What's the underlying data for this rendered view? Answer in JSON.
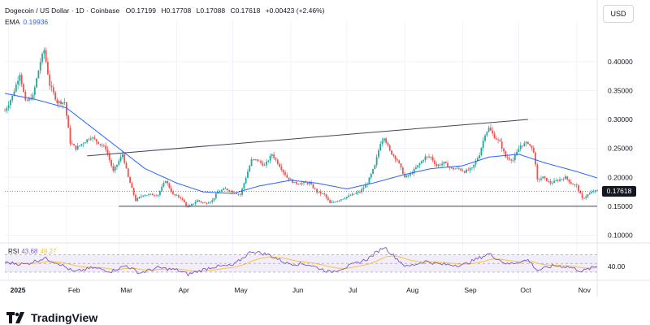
{
  "header": {
    "symbol": "Dogecoin / US Dollar · 1D · Coinbase",
    "open": "O0.17199",
    "high": "H0.17708",
    "low": "L0.17088",
    "close": "C0.17618",
    "change": "+0.00423 (+2.46%)",
    "ema_label": "EMA",
    "ema_value": "0.19936"
  },
  "currency_button": "USD",
  "last_price": "0.17618",
  "rsi": {
    "label": "RSI",
    "value": "43.68",
    "ma_value": "48.27",
    "level_label": "40.00"
  },
  "brand": "TradingView",
  "colors": {
    "up": "#26a69a",
    "down": "#ef5350",
    "ema": "#2962ff",
    "rsi": "#7e57c2",
    "rsi_ma": "#f5c242",
    "band": "#ede7f6"
  },
  "chart_data": {
    "type": "candlestick",
    "y_axis": {
      "ticks": [
        0.1,
        0.15,
        0.2,
        0.25,
        0.3,
        0.35,
        0.4
      ],
      "tick_labels": [
        "0.10000",
        "0.15000",
        "0.20000",
        "0.25000",
        "0.30000",
        "0.35000",
        "0.40000"
      ],
      "ylim": [
        0.088,
        0.47
      ]
    },
    "x_axis": {
      "labels": [
        "2025",
        "Feb",
        "Mar",
        "Apr",
        "May",
        "Jun",
        "Jul",
        "Aug",
        "Sep",
        "Oct",
        "Nov"
      ],
      "dates": [
        "2025-01-01",
        "2025-02-01",
        "2025-03-01",
        "2025-04-01",
        "2025-05-01",
        "2025-06-01",
        "2025-07-01",
        "2025-08-01",
        "2025-09-01",
        "2025-10-01",
        "2025-11-01"
      ],
      "range": [
        "2024-12-30",
        "2025-11-12"
      ]
    },
    "price_anchors": [
      [
        "2024-12-30",
        0.315
      ],
      [
        "2025-01-03",
        0.34
      ],
      [
        "2025-01-07",
        0.38
      ],
      [
        "2025-01-10",
        0.33
      ],
      [
        "2025-01-14",
        0.34
      ],
      [
        "2025-01-18",
        0.4
      ],
      [
        "2025-01-20",
        0.42
      ],
      [
        "2025-01-23",
        0.36
      ],
      [
        "2025-01-27",
        0.33
      ],
      [
        "2025-01-31",
        0.33
      ],
      [
        "2025-02-03",
        0.26
      ],
      [
        "2025-02-06",
        0.25
      ],
      [
        "2025-02-10",
        0.26
      ],
      [
        "2025-02-14",
        0.27
      ],
      [
        "2025-02-18",
        0.26
      ],
      [
        "2025-02-22",
        0.25
      ],
      [
        "2025-02-26",
        0.21
      ],
      [
        "2025-03-03",
        0.24
      ],
      [
        "2025-03-06",
        0.2
      ],
      [
        "2025-03-10",
        0.16
      ],
      [
        "2025-03-14",
        0.17
      ],
      [
        "2025-03-18",
        0.17
      ],
      [
        "2025-03-22",
        0.17
      ],
      [
        "2025-03-26",
        0.195
      ],
      [
        "2025-03-30",
        0.17
      ],
      [
        "2025-04-03",
        0.165
      ],
      [
        "2025-04-07",
        0.148
      ],
      [
        "2025-04-12",
        0.16
      ],
      [
        "2025-04-16",
        0.155
      ],
      [
        "2025-04-20",
        0.16
      ],
      [
        "2025-04-23",
        0.175
      ],
      [
        "2025-04-27",
        0.18
      ],
      [
        "2025-05-01",
        0.175
      ],
      [
        "2025-05-05",
        0.17
      ],
      [
        "2025-05-08",
        0.2
      ],
      [
        "2025-05-11",
        0.23
      ],
      [
        "2025-05-14",
        0.23
      ],
      [
        "2025-05-18",
        0.22
      ],
      [
        "2025-05-22",
        0.24
      ],
      [
        "2025-05-26",
        0.22
      ],
      [
        "2025-05-30",
        0.2
      ],
      [
        "2025-06-03",
        0.19
      ],
      [
        "2025-06-07",
        0.19
      ],
      [
        "2025-06-11",
        0.19
      ],
      [
        "2025-06-15",
        0.175
      ],
      [
        "2025-06-19",
        0.17
      ],
      [
        "2025-06-22",
        0.155
      ],
      [
        "2025-06-26",
        0.16
      ],
      [
        "2025-06-30",
        0.165
      ],
      [
        "2025-07-04",
        0.17
      ],
      [
        "2025-07-08",
        0.175
      ],
      [
        "2025-07-12",
        0.19
      ],
      [
        "2025-07-16",
        0.22
      ],
      [
        "2025-07-19",
        0.26
      ],
      [
        "2025-07-21",
        0.27
      ],
      [
        "2025-07-24",
        0.245
      ],
      [
        "2025-07-28",
        0.23
      ],
      [
        "2025-08-01",
        0.2
      ],
      [
        "2025-08-04",
        0.205
      ],
      [
        "2025-08-08",
        0.22
      ],
      [
        "2025-08-12",
        0.235
      ],
      [
        "2025-08-15",
        0.235
      ],
      [
        "2025-08-18",
        0.22
      ],
      [
        "2025-08-22",
        0.225
      ],
      [
        "2025-08-26",
        0.215
      ],
      [
        "2025-08-30",
        0.215
      ],
      [
        "2025-09-02",
        0.21
      ],
      [
        "2025-09-06",
        0.215
      ],
      [
        "2025-09-10",
        0.24
      ],
      [
        "2025-09-13",
        0.275
      ],
      [
        "2025-09-15",
        0.285
      ],
      [
        "2025-09-18",
        0.27
      ],
      [
        "2025-09-21",
        0.26
      ],
      [
        "2025-09-24",
        0.235
      ],
      [
        "2025-09-28",
        0.23
      ],
      [
        "2025-10-02",
        0.255
      ],
      [
        "2025-10-06",
        0.26
      ],
      [
        "2025-10-09",
        0.245
      ],
      [
        "2025-10-11",
        0.195
      ],
      [
        "2025-10-14",
        0.2
      ],
      [
        "2025-10-18",
        0.19
      ],
      [
        "2025-10-22",
        0.195
      ],
      [
        "2025-10-26",
        0.2
      ],
      [
        "2025-10-29",
        0.19
      ],
      [
        "2025-11-01",
        0.185
      ],
      [
        "2025-11-04",
        0.163
      ],
      [
        "2025-11-07",
        0.17
      ],
      [
        "2025-11-10",
        0.176
      ]
    ],
    "ema_anchors": [
      [
        "2024-12-30",
        0.345
      ],
      [
        "2025-01-15",
        0.335
      ],
      [
        "2025-02-01",
        0.32
      ],
      [
        "2025-02-15",
        0.285
      ],
      [
        "2025-03-01",
        0.25
      ],
      [
        "2025-03-15",
        0.215
      ],
      [
        "2025-04-01",
        0.19
      ],
      [
        "2025-04-15",
        0.175
      ],
      [
        "2025-05-01",
        0.172
      ],
      [
        "2025-05-15",
        0.185
      ],
      [
        "2025-06-01",
        0.195
      ],
      [
        "2025-06-15",
        0.19
      ],
      [
        "2025-07-01",
        0.18
      ],
      [
        "2025-07-15",
        0.19
      ],
      [
        "2025-08-01",
        0.205
      ],
      [
        "2025-08-15",
        0.215
      ],
      [
        "2025-09-01",
        0.22
      ],
      [
        "2025-09-15",
        0.235
      ],
      [
        "2025-10-01",
        0.24
      ],
      [
        "2025-10-15",
        0.225
      ],
      [
        "2025-11-01",
        0.21
      ],
      [
        "2025-11-12",
        0.199
      ]
    ],
    "trendlines": [
      {
        "name": "resistance",
        "from": [
          "2025-02-12",
          0.237
        ],
        "to": [
          "2025-10-06",
          0.3
        ]
      },
      {
        "name": "support",
        "from": [
          "2025-03-01",
          0.15
        ],
        "to": [
          "2025-11-12",
          0.15
        ]
      }
    ],
    "rsi": {
      "ylim": [
        15,
        95
      ],
      "upper": 70,
      "lower": 30,
      "mid": 50,
      "anchors": [
        [
          "2024-12-30",
          52
        ],
        [
          "2025-01-10",
          48
        ],
        [
          "2025-01-20",
          62
        ],
        [
          "2025-01-28",
          50
        ],
        [
          "2025-02-05",
          30
        ],
        [
          "2025-02-15",
          40
        ],
        [
          "2025-02-25",
          32
        ],
        [
          "2025-03-05",
          45
        ],
        [
          "2025-03-12",
          28
        ],
        [
          "2025-03-22",
          40
        ],
        [
          "2025-04-01",
          35
        ],
        [
          "2025-04-07",
          25
        ],
        [
          "2025-04-20",
          42
        ],
        [
          "2025-05-01",
          45
        ],
        [
          "2025-05-11",
          78
        ],
        [
          "2025-05-20",
          70
        ],
        [
          "2025-05-30",
          50
        ],
        [
          "2025-06-10",
          48
        ],
        [
          "2025-06-22",
          30
        ],
        [
          "2025-07-01",
          42
        ],
        [
          "2025-07-12",
          60
        ],
        [
          "2025-07-21",
          88
        ],
        [
          "2025-07-28",
          60
        ],
        [
          "2025-08-02",
          42
        ],
        [
          "2025-08-12",
          55
        ],
        [
          "2025-08-20",
          48
        ],
        [
          "2025-09-01",
          46
        ],
        [
          "2025-09-15",
          72
        ],
        [
          "2025-09-25",
          48
        ],
        [
          "2025-10-06",
          58
        ],
        [
          "2025-10-11",
          34
        ],
        [
          "2025-10-20",
          45
        ],
        [
          "2025-10-28",
          42
        ],
        [
          "2025-11-04",
          32
        ],
        [
          "2025-11-12",
          44
        ]
      ]
    }
  }
}
